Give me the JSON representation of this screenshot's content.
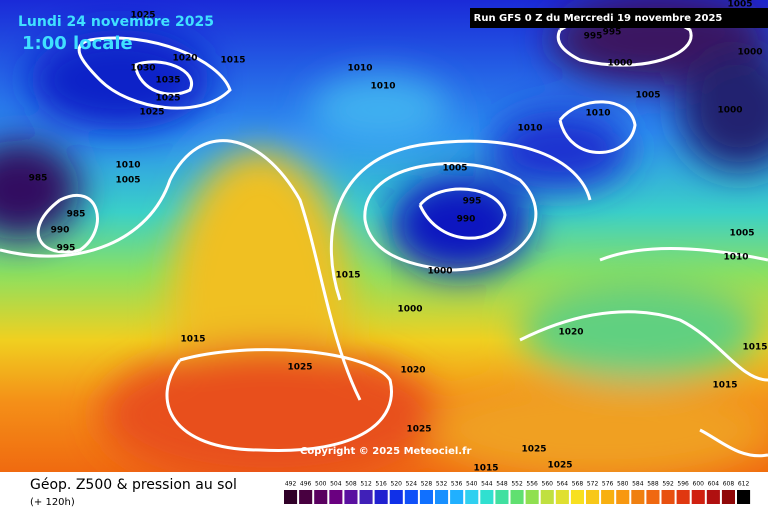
{
  "header": {
    "date": "Lundi 24 novembre 2025",
    "time": "1:00 locale",
    "run": "Run GFS 0 Z du Mercredi 19 novembre 2025"
  },
  "map": {
    "isobar_labels": [
      1025,
      1020,
      1015,
      1030,
      1035,
      1025,
      1025,
      1010,
      1010,
      1010,
      1010,
      995,
      995,
      1000,
      1005,
      1000,
      1000,
      1005,
      1010,
      1005,
      985,
      985,
      990,
      995,
      1005,
      995,
      990,
      1000,
      1015,
      1000,
      1015,
      1025,
      1020,
      1020,
      1010,
      1005,
      1015,
      1015,
      1025,
      1025,
      1025,
      1015
    ]
  },
  "copyright": "Copyright © 2025 Meteociel.fr",
  "footer": {
    "title": "Géop. Z500 & pression au sol",
    "lead": "(+ 120h)",
    "scale": [
      492,
      496,
      500,
      504,
      508,
      512,
      516,
      520,
      524,
      528,
      532,
      536,
      540,
      544,
      548,
      552,
      556,
      560,
      564,
      568,
      572,
      576,
      580,
      584,
      588,
      592,
      596,
      600,
      604,
      608,
      612
    ]
  }
}
